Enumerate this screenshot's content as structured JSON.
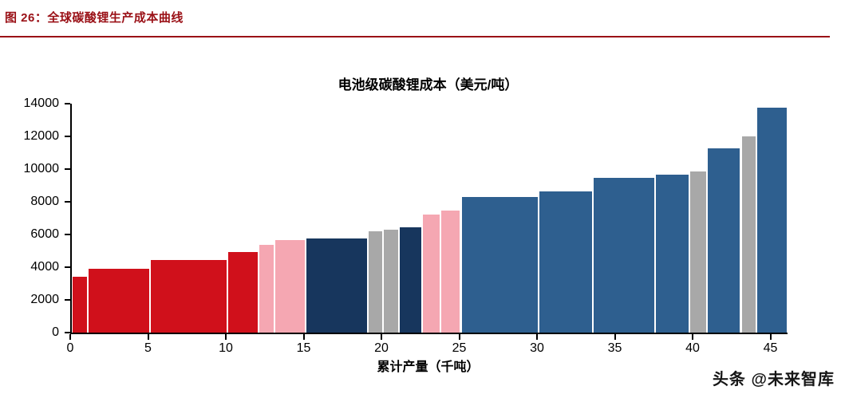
{
  "header": {
    "caption": "图 26：全球碳酸锂生产成本曲线",
    "accent_color": "#9a1016"
  },
  "watermark": {
    "text": "头条 @未来智库"
  },
  "chart_data": {
    "type": "bar",
    "title": "电池级碳酸锂成本（美元/吨）",
    "xlabel": "累计产量（千吨）",
    "ylabel": "",
    "xlim": [
      0,
      46
    ],
    "ylim": [
      0,
      14000
    ],
    "x_ticks": [
      0,
      5,
      10,
      15,
      20,
      25,
      30,
      35,
      40,
      45
    ],
    "y_ticks": [
      0,
      2000,
      4000,
      6000,
      8000,
      10000,
      12000,
      14000
    ],
    "grid": false,
    "legend": "none",
    "colors": {
      "red": "#d0101b",
      "pink": "#f5a7b2",
      "navy": "#17365d",
      "gray": "#a8a8a8",
      "blue": "#2e5f8f"
    },
    "bars": [
      {
        "x0": 0,
        "x1": 1,
        "value": 3400,
        "color": "red"
      },
      {
        "x0": 1,
        "x1": 5,
        "value": 3900,
        "color": "red"
      },
      {
        "x0": 5,
        "x1": 10,
        "value": 4450,
        "color": "red"
      },
      {
        "x0": 10,
        "x1": 12,
        "value": 4950,
        "color": "red"
      },
      {
        "x0": 12,
        "x1": 13,
        "value": 5350,
        "color": "pink"
      },
      {
        "x0": 13,
        "x1": 15,
        "value": 5650,
        "color": "pink"
      },
      {
        "x0": 15,
        "x1": 19,
        "value": 5750,
        "color": "navy"
      },
      {
        "x0": 19,
        "x1": 20,
        "value": 6200,
        "color": "gray"
      },
      {
        "x0": 20,
        "x1": 21,
        "value": 6300,
        "color": "gray"
      },
      {
        "x0": 21,
        "x1": 22.5,
        "value": 6450,
        "color": "navy"
      },
      {
        "x0": 22.5,
        "x1": 23.7,
        "value": 7200,
        "color": "pink"
      },
      {
        "x0": 23.7,
        "x1": 25,
        "value": 7450,
        "color": "pink"
      },
      {
        "x0": 25,
        "x1": 30,
        "value": 8300,
        "color": "blue"
      },
      {
        "x0": 30,
        "x1": 33.5,
        "value": 8650,
        "color": "blue"
      },
      {
        "x0": 33.5,
        "x1": 37.5,
        "value": 9450,
        "color": "blue"
      },
      {
        "x0": 37.5,
        "x1": 39.7,
        "value": 9650,
        "color": "blue"
      },
      {
        "x0": 39.7,
        "x1": 40.8,
        "value": 9850,
        "color": "gray"
      },
      {
        "x0": 40.8,
        "x1": 43,
        "value": 11250,
        "color": "blue"
      },
      {
        "x0": 43,
        "x1": 44,
        "value": 12000,
        "color": "gray"
      },
      {
        "x0": 44,
        "x1": 46,
        "value": 13750,
        "color": "blue"
      }
    ]
  }
}
